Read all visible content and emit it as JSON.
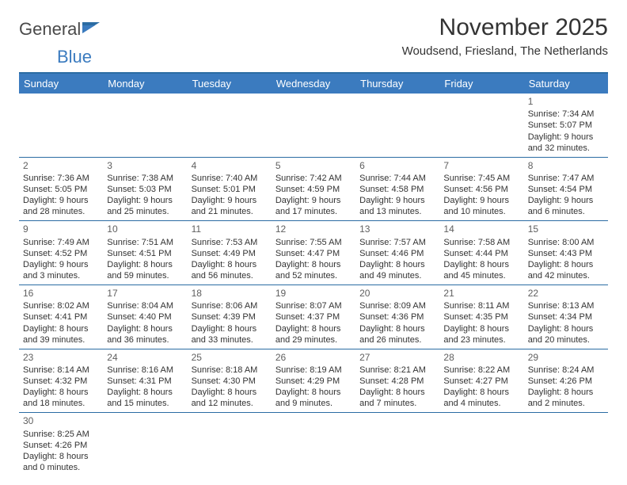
{
  "brand": {
    "name_a": "General",
    "name_b": "Blue"
  },
  "title": "November 2025",
  "location": "Woudsend, Friesland, The Netherlands",
  "colors": {
    "header_bg": "#3b7bbf",
    "header_text": "#ffffff",
    "rule": "#2b6ca3",
    "text": "#333333",
    "daynum": "#5f5f5f"
  },
  "day_names": [
    "Sunday",
    "Monday",
    "Tuesday",
    "Wednesday",
    "Thursday",
    "Friday",
    "Saturday"
  ],
  "weeks": [
    [
      null,
      null,
      null,
      null,
      null,
      null,
      {
        "n": "1",
        "sunrise": "Sunrise: 7:34 AM",
        "sunset": "Sunset: 5:07 PM",
        "day1": "Daylight: 9 hours",
        "day2": "and 32 minutes."
      }
    ],
    [
      {
        "n": "2",
        "sunrise": "Sunrise: 7:36 AM",
        "sunset": "Sunset: 5:05 PM",
        "day1": "Daylight: 9 hours",
        "day2": "and 28 minutes."
      },
      {
        "n": "3",
        "sunrise": "Sunrise: 7:38 AM",
        "sunset": "Sunset: 5:03 PM",
        "day1": "Daylight: 9 hours",
        "day2": "and 25 minutes."
      },
      {
        "n": "4",
        "sunrise": "Sunrise: 7:40 AM",
        "sunset": "Sunset: 5:01 PM",
        "day1": "Daylight: 9 hours",
        "day2": "and 21 minutes."
      },
      {
        "n": "5",
        "sunrise": "Sunrise: 7:42 AM",
        "sunset": "Sunset: 4:59 PM",
        "day1": "Daylight: 9 hours",
        "day2": "and 17 minutes."
      },
      {
        "n": "6",
        "sunrise": "Sunrise: 7:44 AM",
        "sunset": "Sunset: 4:58 PM",
        "day1": "Daylight: 9 hours",
        "day2": "and 13 minutes."
      },
      {
        "n": "7",
        "sunrise": "Sunrise: 7:45 AM",
        "sunset": "Sunset: 4:56 PM",
        "day1": "Daylight: 9 hours",
        "day2": "and 10 minutes."
      },
      {
        "n": "8",
        "sunrise": "Sunrise: 7:47 AM",
        "sunset": "Sunset: 4:54 PM",
        "day1": "Daylight: 9 hours",
        "day2": "and 6 minutes."
      }
    ],
    [
      {
        "n": "9",
        "sunrise": "Sunrise: 7:49 AM",
        "sunset": "Sunset: 4:52 PM",
        "day1": "Daylight: 9 hours",
        "day2": "and 3 minutes."
      },
      {
        "n": "10",
        "sunrise": "Sunrise: 7:51 AM",
        "sunset": "Sunset: 4:51 PM",
        "day1": "Daylight: 8 hours",
        "day2": "and 59 minutes."
      },
      {
        "n": "11",
        "sunrise": "Sunrise: 7:53 AM",
        "sunset": "Sunset: 4:49 PM",
        "day1": "Daylight: 8 hours",
        "day2": "and 56 minutes."
      },
      {
        "n": "12",
        "sunrise": "Sunrise: 7:55 AM",
        "sunset": "Sunset: 4:47 PM",
        "day1": "Daylight: 8 hours",
        "day2": "and 52 minutes."
      },
      {
        "n": "13",
        "sunrise": "Sunrise: 7:57 AM",
        "sunset": "Sunset: 4:46 PM",
        "day1": "Daylight: 8 hours",
        "day2": "and 49 minutes."
      },
      {
        "n": "14",
        "sunrise": "Sunrise: 7:58 AM",
        "sunset": "Sunset: 4:44 PM",
        "day1": "Daylight: 8 hours",
        "day2": "and 45 minutes."
      },
      {
        "n": "15",
        "sunrise": "Sunrise: 8:00 AM",
        "sunset": "Sunset: 4:43 PM",
        "day1": "Daylight: 8 hours",
        "day2": "and 42 minutes."
      }
    ],
    [
      {
        "n": "16",
        "sunrise": "Sunrise: 8:02 AM",
        "sunset": "Sunset: 4:41 PM",
        "day1": "Daylight: 8 hours",
        "day2": "and 39 minutes."
      },
      {
        "n": "17",
        "sunrise": "Sunrise: 8:04 AM",
        "sunset": "Sunset: 4:40 PM",
        "day1": "Daylight: 8 hours",
        "day2": "and 36 minutes."
      },
      {
        "n": "18",
        "sunrise": "Sunrise: 8:06 AM",
        "sunset": "Sunset: 4:39 PM",
        "day1": "Daylight: 8 hours",
        "day2": "and 33 minutes."
      },
      {
        "n": "19",
        "sunrise": "Sunrise: 8:07 AM",
        "sunset": "Sunset: 4:37 PM",
        "day1": "Daylight: 8 hours",
        "day2": "and 29 minutes."
      },
      {
        "n": "20",
        "sunrise": "Sunrise: 8:09 AM",
        "sunset": "Sunset: 4:36 PM",
        "day1": "Daylight: 8 hours",
        "day2": "and 26 minutes."
      },
      {
        "n": "21",
        "sunrise": "Sunrise: 8:11 AM",
        "sunset": "Sunset: 4:35 PM",
        "day1": "Daylight: 8 hours",
        "day2": "and 23 minutes."
      },
      {
        "n": "22",
        "sunrise": "Sunrise: 8:13 AM",
        "sunset": "Sunset: 4:34 PM",
        "day1": "Daylight: 8 hours",
        "day2": "and 20 minutes."
      }
    ],
    [
      {
        "n": "23",
        "sunrise": "Sunrise: 8:14 AM",
        "sunset": "Sunset: 4:32 PM",
        "day1": "Daylight: 8 hours",
        "day2": "and 18 minutes."
      },
      {
        "n": "24",
        "sunrise": "Sunrise: 8:16 AM",
        "sunset": "Sunset: 4:31 PM",
        "day1": "Daylight: 8 hours",
        "day2": "and 15 minutes."
      },
      {
        "n": "25",
        "sunrise": "Sunrise: 8:18 AM",
        "sunset": "Sunset: 4:30 PM",
        "day1": "Daylight: 8 hours",
        "day2": "and 12 minutes."
      },
      {
        "n": "26",
        "sunrise": "Sunrise: 8:19 AM",
        "sunset": "Sunset: 4:29 PM",
        "day1": "Daylight: 8 hours",
        "day2": "and 9 minutes."
      },
      {
        "n": "27",
        "sunrise": "Sunrise: 8:21 AM",
        "sunset": "Sunset: 4:28 PM",
        "day1": "Daylight: 8 hours",
        "day2": "and 7 minutes."
      },
      {
        "n": "28",
        "sunrise": "Sunrise: 8:22 AM",
        "sunset": "Sunset: 4:27 PM",
        "day1": "Daylight: 8 hours",
        "day2": "and 4 minutes."
      },
      {
        "n": "29",
        "sunrise": "Sunrise: 8:24 AM",
        "sunset": "Sunset: 4:26 PM",
        "day1": "Daylight: 8 hours",
        "day2": "and 2 minutes."
      }
    ],
    [
      {
        "n": "30",
        "sunrise": "Sunrise: 8:25 AM",
        "sunset": "Sunset: 4:26 PM",
        "day1": "Daylight: 8 hours",
        "day2": "and 0 minutes."
      },
      null,
      null,
      null,
      null,
      null,
      null
    ]
  ]
}
